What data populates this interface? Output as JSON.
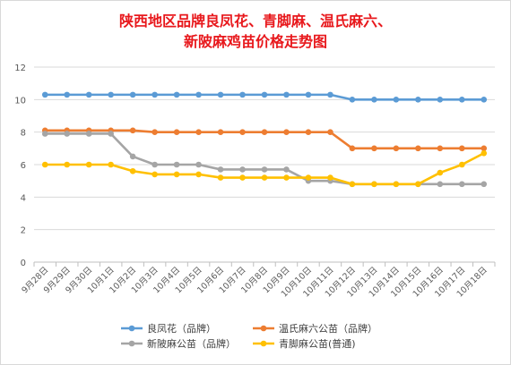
{
  "chart_data": {
    "type": "line",
    "title_lines": [
      "陕西地区品牌良凤花、青脚麻、温氏麻六、",
      "新陂麻鸡苗价格走势图"
    ],
    "xlabel": "",
    "ylabel": "",
    "ylim": [
      0,
      12
    ],
    "yticks": [
      0,
      2,
      4,
      6,
      8,
      10,
      12
    ],
    "grid": true,
    "legend_position": "bottom",
    "categories": [
      "9月28日",
      "9月29日",
      "9月30日",
      "10月1日",
      "10月2日",
      "10月3日",
      "10月4日",
      "10月5日",
      "10月6日",
      "10月7日",
      "10月8日",
      "10月9日",
      "10月10日",
      "10月11日",
      "10月12日",
      "10月13日",
      "10月14日",
      "10月15日",
      "10月16日",
      "10月17日",
      "10月18日"
    ],
    "series": [
      {
        "name": "良凤花（品牌）",
        "color": "#5b9bd5",
        "values": [
          10.3,
          10.3,
          10.3,
          10.3,
          10.3,
          10.3,
          10.3,
          10.3,
          10.3,
          10.3,
          10.3,
          10.3,
          10.3,
          10.3,
          10,
          10,
          10,
          10,
          10,
          10,
          10
        ]
      },
      {
        "name": "温氏麻六公苗（品牌）",
        "color": "#ed7d31",
        "values": [
          8.1,
          8.1,
          8.1,
          8.1,
          8.1,
          8,
          8,
          8,
          8,
          8,
          8,
          8,
          8,
          8,
          7,
          7,
          7,
          7,
          7,
          7,
          7
        ]
      },
      {
        "name": "新陂麻公苗（品牌）",
        "color": "#a5a5a5",
        "values": [
          7.9,
          7.9,
          7.9,
          7.9,
          6.5,
          6,
          6,
          6,
          5.7,
          5.7,
          5.7,
          5.7,
          5,
          5,
          4.8,
          4.8,
          4.8,
          4.8,
          4.8,
          4.8,
          4.8
        ]
      },
      {
        "name": "青脚麻公苗(普通)",
        "color": "#ffc000",
        "values": [
          6,
          6,
          6,
          6,
          5.6,
          5.4,
          5.4,
          5.4,
          5.2,
          5.2,
          5.2,
          5.2,
          5.2,
          5.2,
          4.8,
          4.8,
          4.8,
          4.8,
          5.5,
          6,
          6.7
        ]
      }
    ]
  }
}
